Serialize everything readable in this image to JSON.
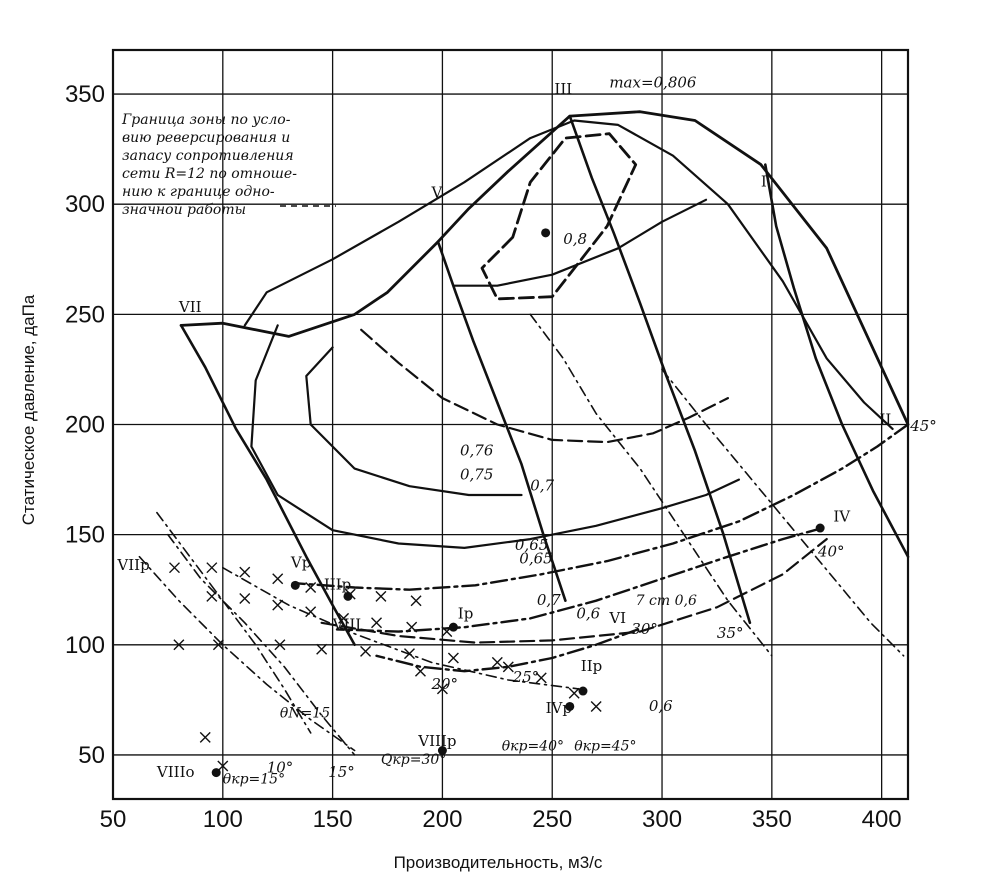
{
  "chart_data": {
    "type": "line",
    "xlabel": "Производительность, м3/с",
    "ylabel": "Статическое давление, даПа",
    "xlim": [
      50,
      412
    ],
    "ylim": [
      30,
      370
    ],
    "x_ticks": [
      50,
      100,
      150,
      200,
      250,
      300,
      350,
      400
    ],
    "y_ticks": [
      50,
      100,
      150,
      200,
      250,
      300,
      350
    ],
    "grid": true,
    "stroke_color": "#111111",
    "efficiency_contours": [
      {
        "label": "max=0,806",
        "points": [
          [
            247,
            287
          ]
        ]
      },
      {
        "label": "0,8",
        "points": [
          [
            232,
            285
          ],
          [
            218,
            271
          ],
          [
            225,
            257
          ],
          [
            250,
            258
          ],
          [
            275,
            290
          ],
          [
            288,
            318
          ],
          [
            276,
            332
          ],
          [
            256,
            330
          ],
          [
            240,
            310
          ],
          [
            232,
            285
          ]
        ]
      },
      {
        "label": "0,76",
        "points": [
          [
            150,
            235
          ],
          [
            138,
            222
          ],
          [
            140,
            200
          ],
          [
            160,
            180
          ],
          [
            185,
            172
          ],
          [
            212,
            168
          ],
          [
            236,
            168
          ]
        ]
      },
      {
        "label": "0,75",
        "points": [
          [
            163,
            243
          ],
          [
            180,
            228
          ],
          [
            200,
            212
          ],
          [
            225,
            200
          ],
          [
            250,
            193
          ],
          [
            275,
            192
          ],
          [
            296,
            196
          ],
          [
            312,
            203
          ],
          [
            330,
            212
          ]
        ]
      },
      {
        "label": "0,7",
        "points": [
          [
            125,
            245
          ],
          [
            115,
            220
          ],
          [
            113,
            190
          ],
          [
            125,
            168
          ],
          [
            150,
            152
          ],
          [
            180,
            146
          ],
          [
            210,
            144
          ],
          [
            240,
            148
          ],
          [
            270,
            154
          ],
          [
            300,
            162
          ],
          [
            320,
            168
          ],
          [
            335,
            175
          ]
        ]
      },
      {
        "label": "0,65",
        "points": [
          [
            110,
            245
          ],
          [
            120,
            260
          ],
          [
            150,
            275
          ],
          [
            180,
            292
          ],
          [
            210,
            310
          ],
          [
            240,
            330
          ],
          [
            260,
            338
          ],
          [
            280,
            336
          ],
          [
            305,
            322
          ],
          [
            330,
            300
          ],
          [
            355,
            265
          ],
          [
            375,
            230
          ],
          [
            392,
            210
          ],
          [
            405,
            198
          ]
        ]
      },
      {
        "label": "0,75",
        "points": [
          [
            205,
            263
          ],
          [
            225,
            263
          ],
          [
            250,
            268
          ],
          [
            280,
            280
          ],
          [
            300,
            292
          ],
          [
            320,
            302
          ]
        ]
      },
      {
        "label": "0,6",
        "points": [
          [
            145,
            110
          ],
          [
            180,
            104
          ],
          [
            215,
            101
          ],
          [
            250,
            102
          ],
          [
            290,
            106
          ],
          [
            325,
            117
          ],
          [
            355,
            132
          ],
          [
            375,
            148
          ]
        ]
      }
    ],
    "blade_angle_curves": [
      {
        "label": "VII",
        "points": [
          [
            81,
            245
          ],
          [
            92,
            226
          ],
          [
            106,
            198
          ],
          [
            120,
            175
          ],
          [
            138,
            140
          ],
          [
            150,
            118
          ],
          [
            160,
            100
          ]
        ]
      },
      {
        "label": "V",
        "points": [
          [
            198,
            283
          ],
          [
            206,
            260
          ],
          [
            214,
            238
          ],
          [
            225,
            210
          ],
          [
            236,
            182
          ],
          [
            246,
            150
          ],
          [
            256,
            120
          ]
        ]
      },
      {
        "label": "III",
        "points": [
          [
            258,
            340
          ],
          [
            268,
            312
          ],
          [
            278,
            287
          ],
          [
            290,
            255
          ],
          [
            302,
            222
          ],
          [
            315,
            188
          ],
          [
            328,
            150
          ],
          [
            340,
            110
          ]
        ]
      },
      {
        "label": "I",
        "points": [
          [
            347,
            318
          ],
          [
            352,
            290
          ],
          [
            360,
            262
          ],
          [
            370,
            230
          ],
          [
            382,
            200
          ],
          [
            396,
            170
          ],
          [
            412,
            140
          ]
        ]
      },
      {
        "label": "II",
        "points": [
          [
            412,
            200
          ],
          [
            398,
            190
          ],
          [
            382,
            180
          ],
          [
            360,
            168
          ],
          [
            335,
            156
          ],
          [
            305,
            146
          ],
          [
            275,
            138
          ],
          [
            245,
            132
          ],
          [
            215,
            127
          ],
          [
            185,
            125
          ],
          [
            160,
            126
          ],
          [
            132,
            128
          ]
        ]
      },
      {
        "label": "IV",
        "points": [
          [
            373,
            153
          ],
          [
            355,
            148
          ],
          [
            330,
            140
          ],
          [
            300,
            130
          ],
          [
            270,
            120
          ],
          [
            240,
            112
          ],
          [
            210,
            108
          ],
          [
            180,
            106
          ],
          [
            152,
            107
          ]
        ]
      },
      {
        "label": "VI",
        "points": [
          [
            289,
            107
          ],
          [
            270,
            100
          ],
          [
            250,
            94
          ],
          [
            230,
            90
          ],
          [
            210,
            88
          ],
          [
            190,
            90
          ],
          [
            170,
            95
          ]
        ]
      }
    ],
    "surge_line": [
      [
        81,
        245
      ],
      [
        100,
        246
      ],
      [
        130,
        240
      ],
      [
        160,
        250
      ],
      [
        175,
        260
      ],
      [
        198,
        283
      ],
      [
        212,
        298
      ],
      [
        230,
        315
      ],
      [
        258,
        340
      ],
      [
        290,
        342
      ],
      [
        315,
        338
      ],
      [
        345,
        318
      ],
      [
        375,
        280
      ],
      [
        412,
        200
      ]
    ],
    "annotation": "Граница зоны по условию реверсирования и запасу сопротивления сети R=12 по отношению к границе однозначной работы",
    "labels": {
      "roman": [
        "I",
        "II",
        "III",
        "IV",
        "V",
        "VI",
        "VII",
        "VIII",
        "Vp",
        "IIIp",
        "Ip",
        "IIp",
        "IVp",
        "VIIp",
        "VIIIp",
        "VIIIo"
      ],
      "angles": [
        "45°",
        "40°",
        "35°",
        "30°",
        "25°",
        "20°",
        "15°",
        "10°"
      ],
      "theta_labels": [
        "θN=15",
        "θкр=15°",
        "Qкр=30°",
        "θкр=40°",
        "θкр=45°",
        "7 cm 0,6"
      ],
      "efficiency_values": [
        "0,8",
        "0,76",
        "0,75",
        "0,7",
        "0,65",
        "0,6",
        "max=0,806"
      ]
    },
    "axis_labels_text": {
      "text_0_65": "0,65",
      "text_0_6": "0,6",
      "text_0_7": "0,7"
    }
  }
}
